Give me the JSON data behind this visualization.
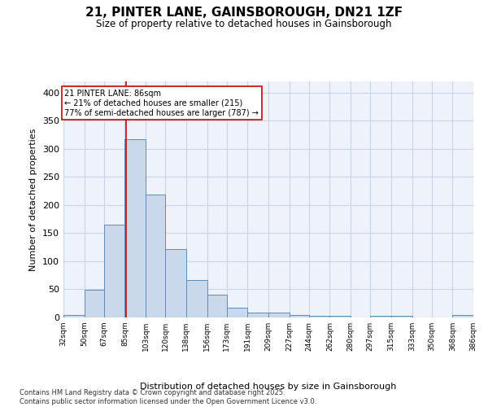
{
  "title": "21, PINTER LANE, GAINSBOROUGH, DN21 1ZF",
  "subtitle": "Size of property relative to detached houses in Gainsborough",
  "xlabel": "Distribution of detached houses by size in Gainsborough",
  "ylabel": "Number of detached properties",
  "bar_color": "#c9d9eb",
  "bar_edge_color": "#5b8db8",
  "grid_color": "#c8d4e8",
  "background_color": "#eef2fa",
  "fig_background_color": "#ffffff",
  "bins": [
    32,
    50,
    67,
    85,
    103,
    120,
    138,
    156,
    173,
    191,
    209,
    227,
    244,
    262,
    280,
    297,
    315,
    333,
    350,
    368,
    386
  ],
  "counts": [
    4,
    49,
    165,
    317,
    219,
    121,
    67,
    40,
    17,
    9,
    9,
    5,
    3,
    3,
    0,
    3,
    3,
    0,
    0,
    4
  ],
  "property_size": 86,
  "annotation_line1": "21 PINTER LANE: 86sqm",
  "annotation_line2": "← 21% of detached houses are smaller (215)",
  "annotation_line3": "77% of semi-detached houses are larger (787) →",
  "vline_color": "#cc0000",
  "annotation_box_facecolor": "#ffffff",
  "annotation_box_edgecolor": "#cc0000",
  "ylim": [
    0,
    420
  ],
  "yticks": [
    0,
    50,
    100,
    150,
    200,
    250,
    300,
    350,
    400
  ],
  "footer_text": "Contains HM Land Registry data © Crown copyright and database right 2025.\nContains public sector information licensed under the Open Government Licence v3.0.",
  "tick_labels": [
    "32sqm",
    "50sqm",
    "67sqm",
    "85sqm",
    "103sqm",
    "120sqm",
    "138sqm",
    "156sqm",
    "173sqm",
    "191sqm",
    "209sqm",
    "227sqm",
    "244sqm",
    "262sqm",
    "280sqm",
    "297sqm",
    "315sqm",
    "333sqm",
    "350sqm",
    "368sqm",
    "386sqm"
  ]
}
